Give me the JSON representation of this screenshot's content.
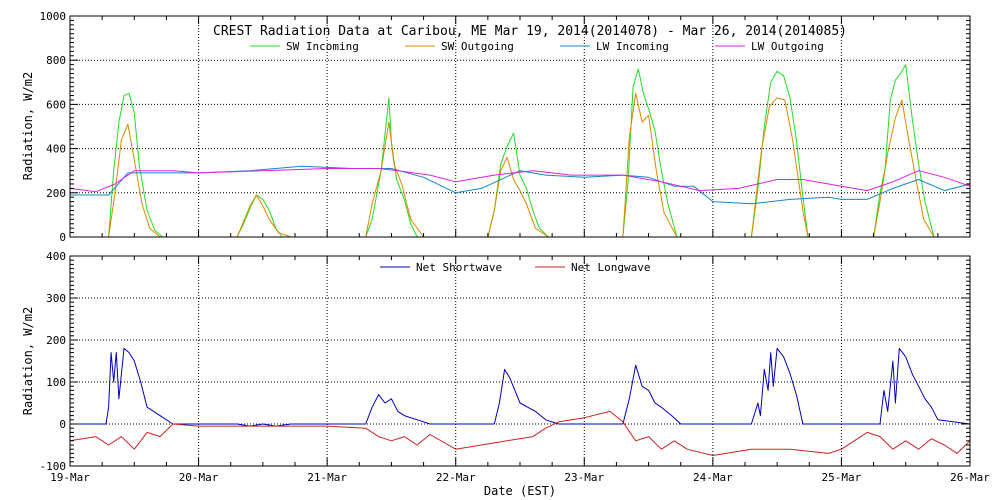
{
  "chart_data": [
    {
      "type": "line",
      "title": "CREST Radiation Data at Caribou, ME   Mar 19, 2014(2014078) - Mar 26, 2014(2014085)",
      "ylabel": "Radiation, W/m^2",
      "ylabel_display": "Radiation, W/m2",
      "xlim": [
        0,
        7
      ],
      "ylim": [
        0,
        1000
      ],
      "yticks": [
        "0",
        "200",
        "400",
        "600",
        "800",
        "1000"
      ],
      "grid": true,
      "legend_placement": "top",
      "series": [
        {
          "name": "SW Incoming",
          "color": "#22dd22",
          "x": [
            0,
            0.3,
            0.34,
            0.38,
            0.42,
            0.46,
            0.5,
            0.54,
            0.6,
            0.66,
            0.72,
            1,
            1.3,
            1.35,
            1.4,
            1.45,
            1.5,
            1.55,
            1.6,
            1.65,
            1.72,
            1.78,
            2,
            2.3,
            2.35,
            2.42,
            2.48,
            2.5,
            2.54,
            2.6,
            2.65,
            2.7,
            2.76,
            3,
            3.25,
            3.3,
            3.35,
            3.4,
            3.45,
            3.5,
            3.55,
            3.6,
            3.65,
            3.72,
            4,
            4.3,
            4.34,
            4.38,
            4.42,
            4.46,
            4.5,
            4.55,
            4.6,
            4.65,
            4.72,
            5,
            5.3,
            5.35,
            5.4,
            5.45,
            5.5,
            5.55,
            5.6,
            5.65,
            5.7,
            5.74,
            6,
            6.25,
            6.3,
            6.34,
            6.38,
            6.42,
            6.46,
            6.5,
            6.55,
            6.6,
            6.65,
            6.72,
            7
          ],
          "y": [
            0,
            0,
            300,
            520,
            640,
            650,
            560,
            320,
            120,
            30,
            0,
            0,
            0,
            60,
            130,
            190,
            170,
            120,
            40,
            0,
            0,
            0,
            0,
            0,
            80,
            300,
            630,
            430,
            260,
            170,
            60,
            0,
            0,
            0,
            0,
            120,
            330,
            410,
            470,
            280,
            220,
            120,
            40,
            0,
            0,
            0,
            250,
            680,
            760,
            650,
            580,
            480,
            300,
            150,
            0,
            0,
            0,
            220,
            500,
            700,
            750,
            730,
            630,
            440,
            180,
            0,
            0,
            0,
            200,
            310,
            620,
            710,
            740,
            780,
            540,
            330,
            160,
            0,
            0
          ]
        },
        {
          "name": "SW Outgoing",
          "color": "#dd8800",
          "x": [
            0,
            0.3,
            0.35,
            0.4,
            0.45,
            0.5,
            0.56,
            0.62,
            0.7,
            1,
            1.3,
            1.35,
            1.4,
            1.45,
            1.5,
            1.55,
            1.62,
            1.72,
            2,
            2.3,
            2.35,
            2.42,
            2.48,
            2.52,
            2.58,
            2.65,
            2.75,
            3,
            3.25,
            3.3,
            3.35,
            3.4,
            3.45,
            3.5,
            3.55,
            3.62,
            3.72,
            4,
            4.3,
            4.35,
            4.4,
            4.45,
            4.5,
            4.56,
            4.62,
            4.72,
            5,
            5.3,
            5.38,
            5.44,
            5.5,
            5.56,
            5.62,
            5.7,
            5.74,
            6,
            6.25,
            6.3,
            6.36,
            6.42,
            6.47,
            6.52,
            6.58,
            6.64,
            6.72,
            7
          ],
          "y": [
            0,
            0,
            200,
            440,
            510,
            350,
            150,
            40,
            0,
            0,
            0,
            70,
            140,
            190,
            140,
            80,
            20,
            0,
            0,
            0,
            150,
            300,
            520,
            330,
            240,
            80,
            0,
            0,
            0,
            120,
            300,
            360,
            260,
            210,
            150,
            40,
            0,
            0,
            0,
            450,
            650,
            520,
            550,
            300,
            110,
            0,
            0,
            0,
            400,
            590,
            630,
            620,
            440,
            120,
            0,
            0,
            0,
            160,
            380,
            540,
            620,
            450,
            260,
            80,
            0,
            0
          ]
        },
        {
          "name": "LW Incoming",
          "color": "#1188cc",
          "x": [
            0,
            0.3,
            0.45,
            0.6,
            1,
            1.4,
            1.8,
            2.2,
            2.5,
            2.75,
            3,
            3.2,
            3.5,
            3.7,
            4,
            4.3,
            4.5,
            4.7,
            4.85,
            5,
            5.3,
            5.6,
            5.9,
            6,
            6.2,
            6.4,
            6.6,
            6.8,
            7
          ],
          "y": [
            190,
            190,
            290,
            290,
            290,
            300,
            320,
            310,
            310,
            270,
            200,
            220,
            300,
            280,
            270,
            280,
            270,
            230,
            230,
            160,
            150,
            170,
            180,
            170,
            170,
            220,
            260,
            210,
            240
          ]
        },
        {
          "name": "LW Outgoing",
          "color": "#dd22dd",
          "x": [
            0,
            0.2,
            0.35,
            0.5,
            0.8,
            1,
            1.5,
            2,
            2.4,
            2.55,
            2.8,
            3,
            3.3,
            3.6,
            3.9,
            4.3,
            4.6,
            4.9,
            5.2,
            5.5,
            5.7,
            6,
            6.2,
            6.4,
            6.6,
            6.8,
            7
          ],
          "y": [
            220,
            205,
            240,
            300,
            300,
            290,
            300,
            310,
            310,
            300,
            280,
            250,
            280,
            300,
            280,
            280,
            250,
            210,
            220,
            260,
            260,
            230,
            210,
            250,
            300,
            270,
            230
          ]
        }
      ]
    },
    {
      "type": "line",
      "xlabel": "Date (EST)",
      "ylabel": "Radiation, W/m^2",
      "ylabel_display": "Radiation, W/m2",
      "xlim": [
        0,
        7
      ],
      "ylim": [
        -100,
        400
      ],
      "yticks": [
        "-100",
        "0",
        "100",
        "200",
        "300",
        "400"
      ],
      "categories": [
        "19-Mar",
        "20-Mar",
        "21-Mar",
        "22-Mar",
        "23-Mar",
        "24-Mar",
        "25-Mar",
        "26-Mar"
      ],
      "grid": true,
      "legend_placement": "top",
      "series": [
        {
          "name": "Net Shortwave",
          "color": "#0000bb",
          "x": [
            0,
            0.28,
            0.3,
            0.32,
            0.34,
            0.36,
            0.38,
            0.42,
            0.46,
            0.5,
            0.55,
            0.6,
            0.7,
            0.8,
            1,
            1.3,
            1.4,
            1.5,
            1.6,
            1.72,
            2,
            2.3,
            2.35,
            2.4,
            2.45,
            2.5,
            2.55,
            2.6,
            2.7,
            2.8,
            3,
            3.3,
            3.34,
            3.38,
            3.42,
            3.46,
            3.5,
            3.56,
            3.62,
            3.7,
            3.8,
            4,
            4.3,
            4.35,
            4.4,
            4.45,
            4.5,
            4.55,
            4.6,
            4.68,
            4.75,
            5,
            5.3,
            5.35,
            5.37,
            5.4,
            5.43,
            5.45,
            5.47,
            5.5,
            5.55,
            5.6,
            5.65,
            5.7,
            6,
            6.3,
            6.33,
            6.36,
            6.4,
            6.42,
            6.45,
            6.5,
            6.55,
            6.6,
            6.65,
            6.7,
            6.75,
            7
          ],
          "y": [
            0,
            0,
            40,
            170,
            100,
            170,
            60,
            180,
            170,
            150,
            100,
            40,
            20,
            0,
            0,
            0,
            -5,
            0,
            -5,
            0,
            0,
            0,
            40,
            70,
            50,
            60,
            30,
            20,
            10,
            0,
            0,
            0,
            50,
            130,
            110,
            80,
            50,
            40,
            30,
            10,
            0,
            0,
            0,
            60,
            140,
            90,
            80,
            50,
            40,
            20,
            0,
            0,
            0,
            50,
            20,
            130,
            80,
            170,
            90,
            180,
            160,
            120,
            70,
            0,
            0,
            0,
            80,
            30,
            150,
            50,
            180,
            160,
            120,
            90,
            60,
            40,
            10,
            0
          ]
        },
        {
          "name": "Net Longwave",
          "color": "#cc2222",
          "x": [
            0,
            0.2,
            0.3,
            0.4,
            0.5,
            0.6,
            0.7,
            0.8,
            1,
            1.3,
            1.6,
            2,
            2.3,
            2.4,
            2.5,
            2.6,
            2.7,
            2.8,
            3,
            3.2,
            3.4,
            3.6,
            3.7,
            3.8,
            4,
            4.2,
            4.3,
            4.4,
            4.5,
            4.6,
            4.7,
            4.8,
            5,
            5.3,
            5.6,
            5.9,
            6,
            6.1,
            6.2,
            6.3,
            6.4,
            6.5,
            6.6,
            6.7,
            6.8,
            6.9,
            7
          ],
          "y": [
            -40,
            -30,
            -50,
            -30,
            -60,
            -20,
            -30,
            0,
            -5,
            -5,
            -5,
            -5,
            -10,
            -30,
            -40,
            -30,
            -50,
            -25,
            -60,
            -50,
            -40,
            -30,
            -10,
            5,
            15,
            30,
            5,
            -40,
            -30,
            -60,
            -40,
            -60,
            -75,
            -60,
            -60,
            -70,
            -60,
            -40,
            -20,
            -30,
            -60,
            -40,
            -60,
            -35,
            -50,
            -70,
            -40
          ]
        }
      ]
    }
  ]
}
